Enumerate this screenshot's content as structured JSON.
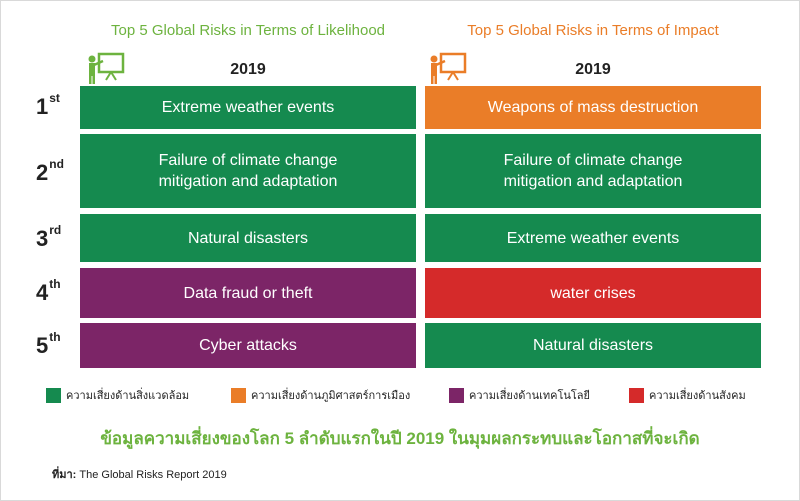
{
  "colors": {
    "environmental": "#158a4f",
    "geopolitical": "#ea7d28",
    "technological": "#7c2567",
    "societal": "#d52a2a",
    "title_green": "#6db33f"
  },
  "likelihood": {
    "title": "Top 5 Global Risks in Terms of Likelihood",
    "year": "2019",
    "items": [
      {
        "label": "Extreme weather events",
        "category": "environmental"
      },
      {
        "label": "Failure of climate change mitigation and adaptation",
        "category": "environmental"
      },
      {
        "label": "Natural disasters",
        "category": "environmental"
      },
      {
        "label": "Data fraud or theft",
        "category": "technological"
      },
      {
        "label": "Cyber attacks",
        "category": "technological"
      }
    ]
  },
  "impact": {
    "title": "Top 5 Global Risks in Terms of Impact",
    "year": "2019",
    "items": [
      {
        "label": "Weapons of mass destruction",
        "category": "geopolitical"
      },
      {
        "label": "Failure of climate change mitigation and adaptation",
        "category": "environmental"
      },
      {
        "label": "Extreme weather events",
        "category": "environmental"
      },
      {
        "label": "water crises",
        "category": "societal"
      },
      {
        "label": "Natural disasters",
        "category": "environmental"
      }
    ]
  },
  "ranks": [
    {
      "num": "1",
      "suffix": "st"
    },
    {
      "num": "2",
      "suffix": "nd"
    },
    {
      "num": "3",
      "suffix": "rd"
    },
    {
      "num": "4",
      "suffix": "th"
    },
    {
      "num": "5",
      "suffix": "th"
    }
  ],
  "legend": [
    {
      "label": "ความเสี่ยงด้านสิ่งแวดล้อม",
      "category": "environmental"
    },
    {
      "label": "ความเสี่ยงด้านภูมิศาสตร์การเมือง",
      "category": "geopolitical"
    },
    {
      "label": "ความเสี่ยงด้านเทคโนโลยี",
      "category": "technological"
    },
    {
      "label": "ความเสี่ยงด้านสังคม",
      "category": "societal"
    }
  ],
  "headline": "ข้อมูลความเสี่ยงของโลก 5 ลำดับแรกในปี 2019 ในมุมผลกระทบและโอกาสที่จะเกิด",
  "source": {
    "prefix": "ที่มา:",
    "text": " The Global Risks Report 2019"
  },
  "icons": {
    "left_presenter": "presenter-board-icon",
    "right_presenter": "presenter-board-icon"
  }
}
